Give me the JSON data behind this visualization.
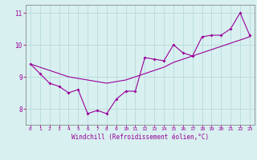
{
  "x": [
    0,
    1,
    2,
    3,
    4,
    5,
    6,
    7,
    8,
    9,
    10,
    11,
    12,
    13,
    14,
    15,
    16,
    17,
    18,
    19,
    20,
    21,
    22,
    23
  ],
  "line1": [
    9.4,
    9.1,
    8.8,
    8.7,
    8.5,
    8.6,
    7.85,
    7.95,
    7.85,
    8.3,
    8.55,
    8.55,
    9.6,
    9.55,
    9.5,
    10.0,
    9.75,
    9.65,
    10.25,
    10.3,
    10.3,
    10.5,
    11.0,
    10.3
  ],
  "line2": [
    9.4,
    9.3,
    9.2,
    9.1,
    9.0,
    8.95,
    8.9,
    8.85,
    8.8,
    8.85,
    8.9,
    9.0,
    9.1,
    9.2,
    9.3,
    9.45,
    9.55,
    9.65,
    9.75,
    9.85,
    9.95,
    10.05,
    10.15,
    10.25
  ],
  "bg_color": "#d8f0f0",
  "line_color": "#990099",
  "grid_color": "#b8dada",
  "axis_color": "#555555",
  "tick_color": "#990099",
  "xlabel": "Windchill (Refroidissement éolien,°C)",
  "ylim": [
    7.5,
    11.25
  ],
  "xlim": [
    -0.5,
    23.5
  ],
  "yticks": [
    8,
    9,
    10,
    11
  ],
  "xticks": [
    0,
    1,
    2,
    3,
    4,
    5,
    6,
    7,
    8,
    9,
    10,
    11,
    12,
    13,
    14,
    15,
    16,
    17,
    18,
    19,
    20,
    21,
    22,
    23
  ]
}
